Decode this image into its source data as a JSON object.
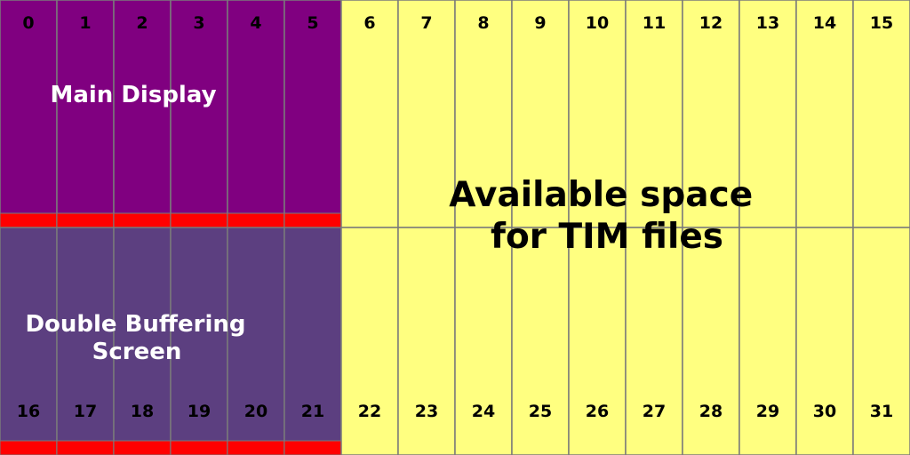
{
  "colors": {
    "main_display": "#800080",
    "double_buffer": "#5c3f80",
    "available": "#ffff80",
    "reserved_strip": "#ff0000",
    "grid_line": "#7a7a7a"
  },
  "grid": {
    "columns": 16,
    "rows": 2,
    "display_columns": 6
  },
  "cells_top": [
    "0",
    "1",
    "2",
    "3",
    "4",
    "5",
    "6",
    "7",
    "8",
    "9",
    "10",
    "11",
    "12",
    "13",
    "14",
    "15"
  ],
  "cells_bottom": [
    "16",
    "17",
    "18",
    "19",
    "20",
    "21",
    "22",
    "23",
    "24",
    "25",
    "26",
    "27",
    "28",
    "29",
    "30",
    "31"
  ],
  "labels": {
    "main_display": "Main Display",
    "double_buffer": [
      "Double Buffering",
      "Screen"
    ],
    "available": [
      "Available space",
      "for TIM files"
    ]
  }
}
